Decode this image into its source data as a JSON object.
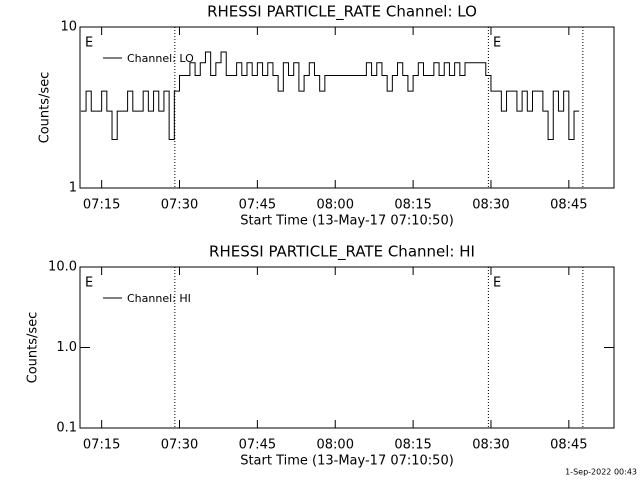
{
  "chart_data": [
    {
      "type": "line",
      "title": "RHESSI PARTICLE_RATE Channel: LO",
      "xlabel": "Start Time (13-May-17 07:10:50)",
      "ylabel": "Counts/sec",
      "log_y": true,
      "ylim": [
        1,
        10
      ],
      "yticks": [
        1,
        10
      ],
      "xlim": [
        430.83,
        533.7
      ],
      "xticks": [
        {
          "value": 435,
          "label": "07:15"
        },
        {
          "value": 450,
          "label": "07:30"
        },
        {
          "value": 465,
          "label": "07:45"
        },
        {
          "value": 480,
          "label": "08:00"
        },
        {
          "value": 495,
          "label": "08:15"
        },
        {
          "value": 510,
          "label": "08:30"
        },
        {
          "value": 525,
          "label": "08:45"
        }
      ],
      "vlines": [
        449.1,
        509.5,
        527.7
      ],
      "flags": [
        {
          "text": "E",
          "x": 431.8
        },
        {
          "text": "E",
          "x": 510.4
        }
      ],
      "x": [
        431,
        432,
        433,
        434,
        435,
        436,
        437,
        438,
        439,
        440,
        441,
        442,
        443,
        444,
        445,
        446,
        447,
        448,
        449,
        450,
        451,
        452,
        453,
        454,
        455,
        456,
        457,
        458,
        459,
        460,
        461,
        462,
        463,
        464,
        465,
        466,
        467,
        468,
        469,
        470,
        471,
        472,
        473,
        474,
        475,
        476,
        477,
        478,
        479,
        480,
        481,
        482,
        483,
        484,
        485,
        486,
        487,
        488,
        489,
        490,
        491,
        492,
        493,
        494,
        495,
        496,
        497,
        498,
        499,
        500,
        501,
        502,
        503,
        504,
        505,
        506,
        507,
        508,
        509,
        510,
        511,
        512,
        513,
        514,
        515,
        516,
        517,
        518,
        519,
        520,
        521,
        522,
        523,
        524,
        525,
        526,
        527
      ],
      "series": [
        {
          "name": "Channel: LO",
          "color": "#000000",
          "values": [
            3,
            4,
            3,
            3,
            4,
            3,
            2,
            3,
            3,
            4,
            3,
            3,
            4,
            3,
            4,
            3,
            4,
            2,
            4,
            5,
            5,
            6,
            5,
            6,
            7,
            5,
            6,
            7,
            5,
            5,
            6,
            5,
            6,
            5,
            6,
            5,
            6,
            5,
            4,
            6,
            5,
            6,
            4,
            5,
            6,
            5,
            4,
            5,
            5,
            5,
            5,
            5,
            5,
            5,
            5,
            6,
            5,
            6,
            5,
            4,
            5,
            6,
            5,
            4,
            5,
            6,
            5,
            5,
            6,
            5,
            6,
            5,
            6,
            5,
            6,
            6,
            6,
            6,
            5,
            4,
            4,
            3,
            4,
            4,
            3,
            4,
            3,
            4,
            4,
            3,
            2,
            4,
            3,
            4,
            2,
            3,
            3
          ]
        }
      ]
    },
    {
      "type": "line",
      "title": "RHESSI PARTICLE_RATE Channel: HI",
      "xlabel": "Start Time (13-May-17 07:10:50)",
      "ylabel": "Counts/sec",
      "log_y": true,
      "ylim": [
        0.1,
        10
      ],
      "yticks": [
        0.1,
        {
          "value": 1,
          "label": "1.0"
        },
        {
          "value": 10,
          "label": "10.0"
        }
      ],
      "xlim": [
        430.83,
        533.7
      ],
      "xticks": [
        {
          "value": 435,
          "label": "07:15"
        },
        {
          "value": 450,
          "label": "07:30"
        },
        {
          "value": 465,
          "label": "07:45"
        },
        {
          "value": 480,
          "label": "08:00"
        },
        {
          "value": 495,
          "label": "08:15"
        },
        {
          "value": 510,
          "label": "08:30"
        },
        {
          "value": 525,
          "label": "08:45"
        }
      ],
      "vlines": [
        449.1,
        509.5,
        527.7
      ],
      "flags": [
        {
          "text": "E",
          "x": 431.8
        },
        {
          "text": "E",
          "x": 510.4
        }
      ],
      "x": [],
      "series": [
        {
          "name": "Channel: HI",
          "color": "#000000",
          "values": []
        }
      ]
    }
  ],
  "footer": "1-Sep-2022 00:43"
}
